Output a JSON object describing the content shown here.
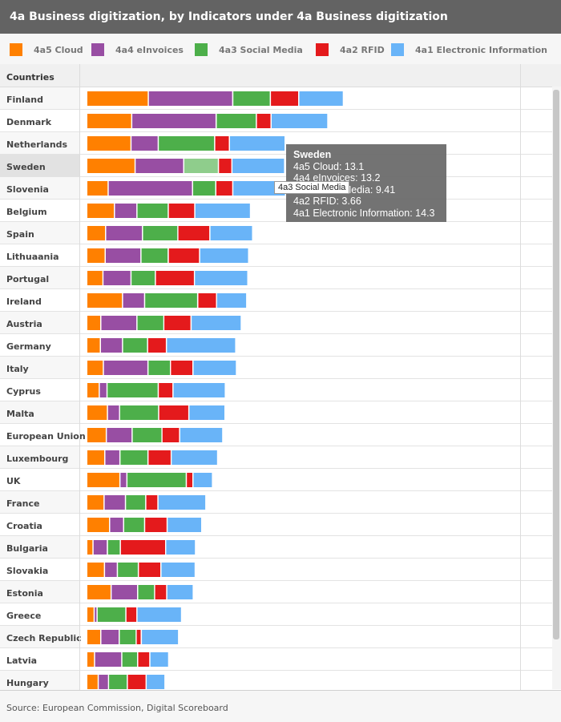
{
  "title": "4a Business digitization, by Indicators under 4a Business digitization",
  "legend": [
    {
      "label": "4a5 Cloud",
      "color": "#ff8000"
    },
    {
      "label": "4a4 eInvoices",
      "color": "#984ea3"
    },
    {
      "label": "4a3 Social Media",
      "color": "#4daf4a"
    },
    {
      "label": "4a2 RFID",
      "color": "#e41a1c"
    },
    {
      "label": "4a1 Electronic Information",
      "color": "#69b4f8"
    }
  ],
  "table": {
    "countries_header": "Countries"
  },
  "chart_data": {
    "type": "bar",
    "orientation": "horizontal",
    "stacked": true,
    "highlighted_category": "Sweden",
    "categories": [
      "Finland",
      "Denmark",
      "Netherlands",
      "Sweden",
      "Slovenia",
      "Belgium",
      "Spain",
      "Lithuaania",
      "Portugal",
      "Ireland",
      "Austria",
      "Germany",
      "Italy",
      "Cyprus",
      "Malta",
      "European Union",
      "Luxembourg",
      "UK",
      "France",
      "Croatia",
      "Bulgaria",
      "Slovakia",
      "Estonia",
      "Greece",
      "Czech Republic",
      "Latvia",
      "Hungary"
    ],
    "series": [
      {
        "name": "4a5 Cloud",
        "color": "#ff8000",
        "values": [
          16.7,
          12.2,
          12.0,
          13.1,
          5.8,
          7.5,
          5.1,
          5.0,
          4.4,
          9.7,
          3.8,
          3.7,
          4.5,
          3.4,
          5.6,
          5.3,
          4.9,
          9.0,
          4.7,
          6.2,
          1.7,
          4.8,
          6.6,
          2.0,
          3.8,
          2.1,
          3.1
        ]
      },
      {
        "name": "4a4 eInvoices",
        "color": "#984ea3",
        "values": [
          22.9,
          22.9,
          7.4,
          13.2,
          22.9,
          6.1,
          10.0,
          9.7,
          7.6,
          6.0,
          9.8,
          6.0,
          12.1,
          2.1,
          3.3,
          7.0,
          4.1,
          1.9,
          5.8,
          3.8,
          3.9,
          3.5,
          7.2,
          0.8,
          5.0,
          7.4,
          2.8
        ]
      },
      {
        "name": "4a3 Social Media",
        "color": "#4daf4a",
        "values": [
          10.2,
          10.9,
          15.3,
          9.41,
          6.3,
          8.5,
          9.6,
          7.4,
          6.6,
          14.4,
          7.3,
          6.8,
          6.1,
          13.9,
          10.6,
          8.1,
          7.6,
          16.1,
          5.5,
          5.7,
          3.5,
          5.7,
          4.6,
          7.8,
          4.6,
          4.3,
          5.1
        ]
      },
      {
        "name": "4a2 RFID",
        "color": "#e41a1c",
        "values": [
          7.7,
          4.0,
          4.0,
          3.66,
          4.6,
          7.2,
          8.7,
          8.5,
          10.6,
          5.1,
          7.4,
          5.1,
          6.1,
          4.0,
          8.2,
          4.8,
          6.3,
          1.8,
          3.3,
          6.1,
          12.3,
          6.1,
          3.3,
          3.0,
          1.4,
          3.3,
          5.1
        ]
      },
      {
        "name": "4a1 Electronic Information",
        "color": "#69b4f8",
        "values": [
          12.1,
          15.4,
          15.1,
          14.3,
          14.3,
          15.1,
          11.6,
          13.3,
          14.5,
          8.2,
          13.6,
          18.8,
          11.8,
          14.2,
          9.8,
          11.7,
          12.6,
          5.3,
          13.0,
          9.4,
          8.1,
          9.3,
          7.2,
          12.1,
          10.1,
          5.1,
          5.1
        ]
      }
    ]
  },
  "tooltip": {
    "title": "Sweden",
    "lines": [
      "4a5 Cloud: 13.1",
      "4a4 eInvoices: 13.2",
      "4a3 Social Media: 9.41",
      "4a2 RFID: 3.66",
      "4a1 Electronic Information: 14.3"
    ],
    "hover_label": "4a3 Social Media"
  },
  "source": "Source: European Commission, Digital Scoreboard"
}
